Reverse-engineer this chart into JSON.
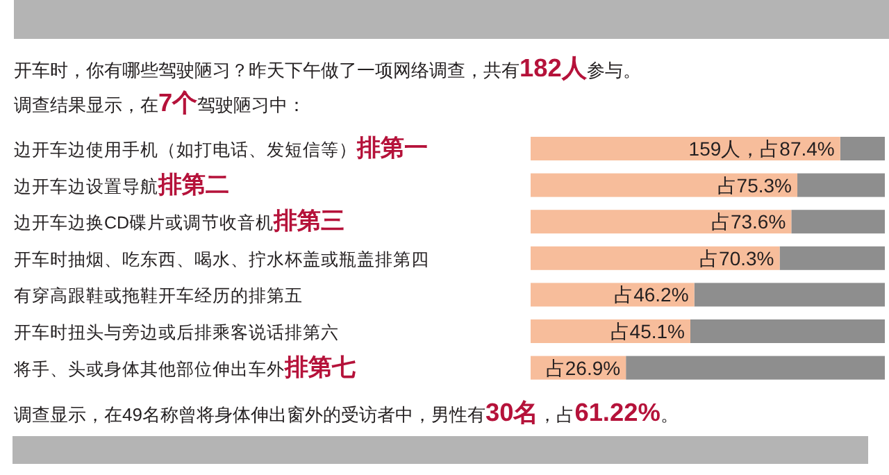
{
  "chart_data": {
    "type": "bar",
    "orientation": "horizontal",
    "title": "开车时，你有哪些驾驶陋习？昨天下午做了一项网络调查，共有**182人**参与。",
    "subtitle": "调查结果显示，在**7个**驾驶陋习中：",
    "categories": [
      "边开车边使用手机（如打电话、发短信等）**排第一**",
      "边开车边设置导航**排第二**",
      "边开车边换CD碟片或调节收音机**排第三**",
      "开车时抽烟、吃东西、喝水、拧水杯盖或瓶盖排第四",
      "有穿高跟鞋或拖鞋开车经历的排第五",
      "开车时扭头与旁边或后排乘客说话排第六",
      "将手、头或身体其他部位伸出车外**排第七**"
    ],
    "values": [
      87.4,
      75.3,
      73.6,
      70.3,
      46.2,
      45.1,
      26.9
    ],
    "value_labels": [
      "159人，占87.4%",
      "占75.3%",
      "占73.6%",
      "占70.3%",
      "占46.2%",
      "占45.1%",
      "占26.9%"
    ],
    "color": "#f7bd9b",
    "xlim": [
      0,
      100
    ],
    "annotations": [
      "调查显示，在49名称曾将身体伸出窗外的受访者中，男性有**30名**，占**61.22%**。"
    ]
  }
}
